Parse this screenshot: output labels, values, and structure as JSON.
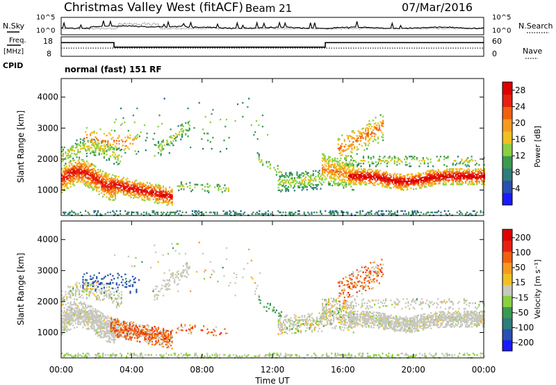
{
  "header": {
    "title": "Christmas Valley West (fitACF)",
    "beam": "Beam 21",
    "date": "07/Mar/2016"
  },
  "side_labels": {
    "nsky": "N.Sky",
    "nsearch": "N.Search",
    "freq": "Freq.",
    "freq_unit": "[MHz]",
    "nave": "Nave",
    "cpid": "CPID",
    "cpid_value": "normal (fast) 151 RF"
  },
  "noise_panel": {
    "left_ticks": [
      "10^5",
      "10^0"
    ],
    "right_ticks": [
      "10^5",
      "10^0"
    ]
  },
  "freq_panel": {
    "left_ticks": [
      "18",
      "8"
    ],
    "right_ticks": [
      "60",
      "0"
    ]
  },
  "colors": {
    "power_scale": [
      "#1a1aff",
      "#2850b0",
      "#2e7c7c",
      "#3a9a50",
      "#8ad040",
      "#f0c020",
      "#f59a20",
      "#f06010",
      "#e82010",
      "#dd0000"
    ],
    "velocity_scale": [
      "#1a1aff",
      "#2850b0",
      "#2e7c7c",
      "#3a9a50",
      "#8ad040",
      "#c8c8be",
      "#f0c020",
      "#f59a20",
      "#f06010",
      "#e82010",
      "#dd0000"
    ],
    "velocity_ground": "#c8c8be"
  },
  "chart_data": [
    {
      "type": "line",
      "panel": "noise",
      "x_range": [
        "00:00",
        "24:00"
      ],
      "series": [
        {
          "name": "N.Sky",
          "style": "solid"
        },
        {
          "name": "N.Search",
          "style": "dotted"
        }
      ]
    },
    {
      "type": "line",
      "panel": "frequency",
      "x": [
        "00:00",
        "03:00",
        "03:00",
        "15:00",
        "15:00",
        "24:00"
      ],
      "series": [
        {
          "name": "Freq.",
          "style": "solid",
          "unit": "MHz",
          "values": [
            15.2,
            15.2,
            12.7,
            12.7,
            15.2,
            15.2
          ]
        },
        {
          "name": "Nave",
          "style": "dotted",
          "values": [
            25,
            25,
            25,
            25,
            25,
            25
          ]
        }
      ],
      "ylim_left": [
        8,
        18
      ],
      "ylim_right": [
        0,
        60
      ]
    },
    {
      "type": "heatmap",
      "panel": "power",
      "xlabel": "",
      "ylabel": "Slant Range [km]",
      "yticks": [
        "1000",
        "2000",
        "3000",
        "4000"
      ],
      "ylim": [
        180,
        4600
      ],
      "colorbar": {
        "label": "Power [dB]",
        "ticks": [
          "4",
          "8",
          "12",
          "16",
          "20",
          "24",
          "28"
        ],
        "range": [
          0,
          30
        ]
      }
    },
    {
      "type": "heatmap",
      "panel": "velocity",
      "xlabel": "Time UT",
      "ylabel": "Slant Range [km]",
      "yticks": [
        "1000",
        "2000",
        "3000",
        "4000"
      ],
      "ylim": [
        180,
        4600
      ],
      "xticks": [
        "00:00",
        "04:00",
        "08:00",
        "12:00",
        "16:00",
        "20:00",
        "00:00"
      ],
      "colorbar": {
        "label": "Velocity [m s⁻¹]",
        "ticks": [
          "200",
          "100",
          "50",
          "15",
          "-15",
          "-50",
          "-100",
          "-200"
        ]
      }
    }
  ]
}
